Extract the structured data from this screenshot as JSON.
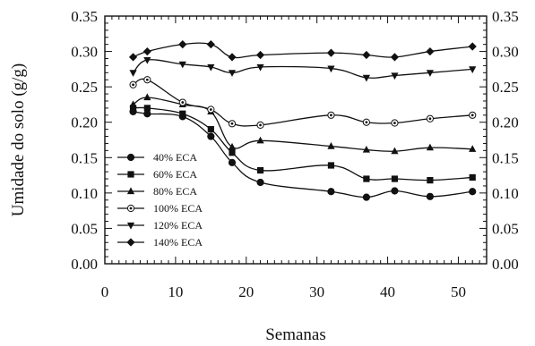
{
  "chart_data": {
    "type": "line",
    "title": "",
    "xlabel": "Semanas",
    "ylabel": "Umidade do solo (g/g)",
    "xlim": [
      0,
      54
    ],
    "ylim": [
      0,
      0.35
    ],
    "xticks": [
      0,
      10,
      20,
      30,
      40,
      50
    ],
    "yticks": [
      "0.00",
      "0.05",
      "0.10",
      "0.15",
      "0.20",
      "0.25",
      "0.30",
      "0.35"
    ],
    "right_axis_mirrored": true,
    "grid": false,
    "legend_position": "lower-left",
    "series": [
      {
        "name": "40% ECA",
        "marker": "circle-filled",
        "x": [
          4,
          6,
          11,
          15,
          18,
          22,
          32,
          37,
          41,
          46,
          52
        ],
        "y": [
          0.215,
          0.212,
          0.208,
          0.18,
          0.143,
          0.115,
          0.102,
          0.094,
          0.103,
          0.095,
          0.102
        ]
      },
      {
        "name": "60% ECA",
        "marker": "square-filled",
        "x": [
          4,
          6,
          11,
          15,
          18,
          22,
          32,
          37,
          41,
          46,
          52
        ],
        "y": [
          0.22,
          0.22,
          0.212,
          0.19,
          0.157,
          0.132,
          0.139,
          0.12,
          0.12,
          0.118,
          0.122
        ]
      },
      {
        "name": "80% ECA",
        "marker": "triangle-up-filled",
        "x": [
          4,
          6,
          11,
          15,
          18,
          22,
          32,
          37,
          41,
          46,
          52
        ],
        "y": [
          0.225,
          0.235,
          0.225,
          0.215,
          0.165,
          0.174,
          0.166,
          0.161,
          0.159,
          0.164,
          0.162
        ]
      },
      {
        "name": "100% ECA",
        "marker": "circle-hatched",
        "x": [
          4,
          6,
          11,
          15,
          18,
          22,
          32,
          37,
          41,
          46,
          52
        ],
        "y": [
          0.253,
          0.26,
          0.228,
          0.218,
          0.198,
          0.196,
          0.21,
          0.2,
          0.199,
          0.205,
          0.21
        ]
      },
      {
        "name": "120% ECA",
        "marker": "triangle-down-filled",
        "x": [
          4,
          6,
          11,
          15,
          18,
          22,
          32,
          37,
          41,
          46,
          52
        ],
        "y": [
          0.27,
          0.288,
          0.282,
          0.278,
          0.27,
          0.278,
          0.276,
          0.263,
          0.266,
          0.27,
          0.275
        ]
      },
      {
        "name": "140% ECA",
        "marker": "diamond-filled",
        "x": [
          4,
          6,
          11,
          15,
          18,
          22,
          32,
          37,
          41,
          46,
          52
        ],
        "y": [
          0.292,
          0.3,
          0.31,
          0.31,
          0.292,
          0.295,
          0.298,
          0.295,
          0.292,
          0.3,
          0.307
        ]
      }
    ]
  }
}
